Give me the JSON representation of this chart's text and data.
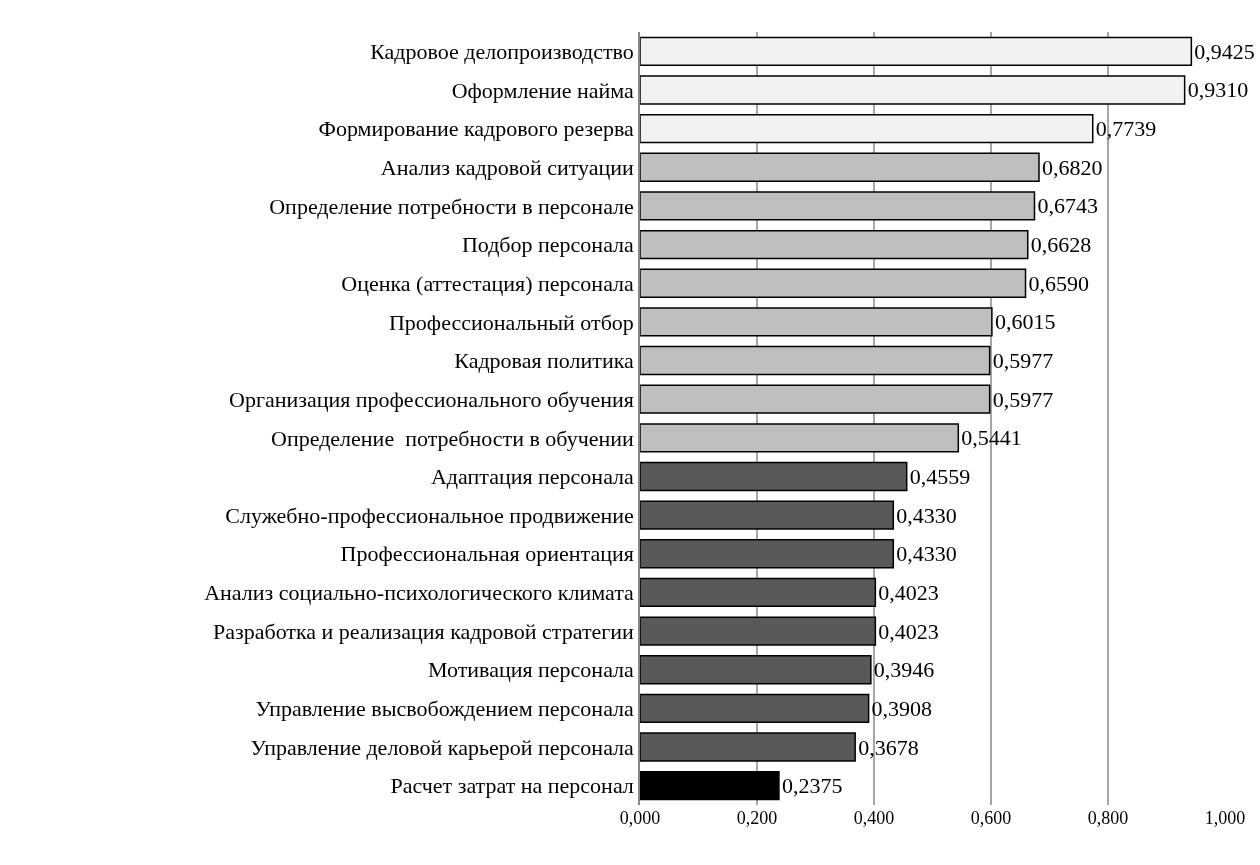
{
  "chart_data": {
    "type": "bar",
    "orientation": "horizontal",
    "categories": [
      "Кадровое делопроизводство",
      "Оформление найма",
      "Формирование кадрового резерва",
      "Анализ кадровой ситуации",
      "Определение потребности в персонале",
      "Подбор персонала",
      "Оценка (аттестация) персонала",
      "Профессиональный отбор",
      "Кадровая политика",
      "Организация профессионального обучения",
      "Определение  потребности в обучении",
      "Адаптация персонала",
      "Служебно-профессиональное продвижение",
      "Профессиональная ориентация",
      "Анализ социально-психологического климата",
      "Разработка и реализация кадровой стратегии",
      "Мотивация персонала",
      "Управление высвобождением персонала",
      "Управление деловой карьерой персонала",
      "Расчет затрат на персонал"
    ],
    "values": [
      0.9425,
      0.931,
      0.7739,
      0.682,
      0.6743,
      0.6628,
      0.659,
      0.6015,
      0.5977,
      0.5977,
      0.5441,
      0.4559,
      0.433,
      0.433,
      0.4023,
      0.4023,
      0.3946,
      0.3908,
      0.3678,
      0.2375
    ],
    "value_labels": [
      "0,9425",
      "0,9310",
      "0,7739",
      "0,6820",
      "0,6743",
      "0,6628",
      "0,6590",
      "0,6015",
      "0,5977",
      "0,5977",
      "0,5441",
      "0,4559",
      "0,4330",
      "0,4330",
      "0,4023",
      "0,4023",
      "0,3946",
      "0,3908",
      "0,3678",
      "0,2375"
    ],
    "colors": [
      "#f2f2f2",
      "#f2f2f2",
      "#f2f2f2",
      "#bfbfbf",
      "#bfbfbf",
      "#bfbfbf",
      "#bfbfbf",
      "#bfbfbf",
      "#bfbfbf",
      "#bfbfbf",
      "#bfbfbf",
      "#595959",
      "#595959",
      "#595959",
      "#595959",
      "#595959",
      "#595959",
      "#595959",
      "#595959",
      "#000000"
    ],
    "xlim": [
      0,
      1.0
    ],
    "xticks": [
      {
        "value": 0,
        "label": "0,000"
      },
      {
        "value": 0.2,
        "label": "0,200"
      },
      {
        "value": 0.4,
        "label": "0,400"
      },
      {
        "value": 0.6,
        "label": "0,600"
      },
      {
        "value": 0.8,
        "label": "0,800"
      },
      {
        "value": 1.0,
        "label": "1,000"
      }
    ],
    "grid": "x",
    "legend": false
  }
}
